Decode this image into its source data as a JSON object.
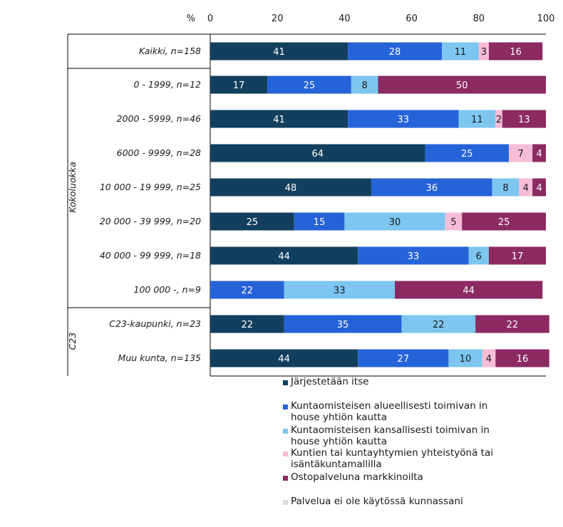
{
  "chart_data": {
    "type": "bar",
    "orientation": "horizontal",
    "stacked": true,
    "axis_unit_label": "%",
    "xlim": [
      0,
      100
    ],
    "xticks": [
      0,
      20,
      40,
      60,
      80,
      100
    ],
    "groups": [
      {
        "label": "",
        "rows": [
          0
        ]
      },
      {
        "label": "Kokoluokka",
        "rows": [
          1,
          2,
          3,
          4,
          5,
          6,
          7
        ]
      },
      {
        "label": "C23",
        "rows": [
          8,
          9
        ]
      }
    ],
    "categories": [
      "Kaikki, n=158",
      "0 - 1999, n=12",
      "2000 - 5999, n=46",
      "6000 - 9999, n=28",
      "10 000 - 19 999, n=25",
      "20 000 - 39 999, n=20",
      "40 000 - 99 999, n=18",
      "100 000 -, n=9",
      "C23-kaupunki, n=23",
      "Muu kunta, n=135"
    ],
    "series": [
      {
        "name": "Järjestetään itse",
        "color": "#123f5e",
        "text_color": "#ffffff",
        "values": [
          41,
          17,
          41,
          64,
          48,
          25,
          44,
          0,
          22,
          44
        ]
      },
      {
        "name": "Kuntaomisteisen alueellisesti toimivan in house yhtiön kautta",
        "color": "#2563d9",
        "text_color": "#ffffff",
        "values": [
          28,
          25,
          33,
          25,
          36,
          15,
          33,
          22,
          35,
          27
        ]
      },
      {
        "name": "Kuntaomisteisen kansallisesti toimivan in house yhtiön kautta",
        "color": "#7cc6f0",
        "text_color": "#1a1a1a",
        "values": [
          11,
          8,
          11,
          0,
          8,
          30,
          6,
          33,
          22,
          10
        ]
      },
      {
        "name": "Kuntien tai kuntayhtymien yhteistyönä tai isäntäkuntamallilla",
        "color": "#f7bcd6",
        "text_color": "#1a1a1a",
        "values": [
          3,
          0,
          2,
          7,
          4,
          5,
          0,
          0,
          0,
          4
        ]
      },
      {
        "name": "Ostopalveluna markkinoilta",
        "color": "#8c2a62",
        "text_color": "#ffffff",
        "values": [
          16,
          50,
          13,
          4,
          4,
          25,
          17,
          44,
          22,
          16
        ]
      },
      {
        "name": "Palvelua ei ole käytössä kunnassani",
        "color": "#dcdcdc",
        "text_color": "#1a1a1a",
        "values": [
          0,
          0,
          0,
          0,
          0,
          0,
          0,
          0,
          0,
          0
        ]
      }
    ],
    "legend_lines": [
      [
        "Järjestetään itse"
      ],
      [
        "Kuntaomisteisen alueellisesti toimivan in",
        "house yhtiön kautta"
      ],
      [
        "Kuntaomisteisen kansallisesti toimivan in",
        "house yhtiön kautta"
      ],
      [
        "Kuntien tai kuntayhtymien yhteistyönä tai",
        "isäntäkuntamallilla"
      ],
      [
        "Ostopalveluna markkinoilta"
      ],
      [
        "Palvelua ei ole käytössä kunnassani"
      ]
    ]
  }
}
